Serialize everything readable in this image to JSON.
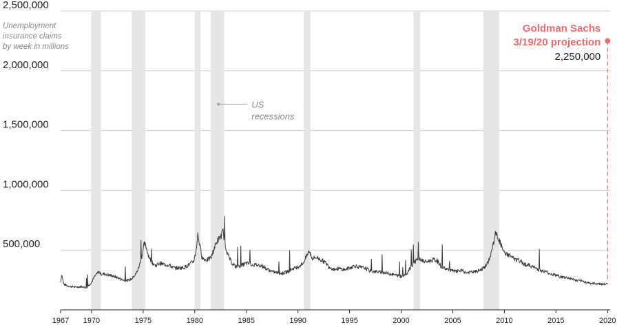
{
  "chart_data": {
    "type": "line",
    "title": "",
    "ylabel_note": [
      "Unemployment",
      "insurance claims",
      "by week in millions"
    ],
    "xlabel": "",
    "xlim": [
      1967,
      2020.25
    ],
    "ylim": [
      0,
      2500000
    ],
    "grid": true,
    "y_ticks": [
      {
        "value": 500000,
        "label": "500,000"
      },
      {
        "value": 1000000,
        "label": "1,000,000"
      },
      {
        "value": 1500000,
        "label": "1,500,000"
      },
      {
        "value": 2000000,
        "label": "2,000,000"
      },
      {
        "value": 2500000,
        "label": "2,500,000"
      }
    ],
    "x_ticks": [
      {
        "value": 1967,
        "label": "1967"
      },
      {
        "value": 1970,
        "label": "1970"
      },
      {
        "value": 1975,
        "label": "1975"
      },
      {
        "value": 1980,
        "label": "1980"
      },
      {
        "value": 1985,
        "label": "1985"
      },
      {
        "value": 1990,
        "label": "1990"
      },
      {
        "value": 1995,
        "label": "1995"
      },
      {
        "value": 2000,
        "label": "2000"
      },
      {
        "value": 2005,
        "label": "2005"
      },
      {
        "value": 2010,
        "label": "2010"
      },
      {
        "value": 2015,
        "label": "2015"
      },
      {
        "value": 2020,
        "label": "2020"
      }
    ],
    "recessions_label": [
      "US",
      "recessions"
    ],
    "recessions": [
      [
        1969.95,
        1970.9
      ],
      [
        1973.9,
        1975.2
      ],
      [
        1980.0,
        1980.55
      ],
      [
        1981.55,
        1982.85
      ],
      [
        1990.55,
        1991.2
      ],
      [
        2001.2,
        2001.85
      ],
      [
        2007.95,
        2009.5
      ]
    ],
    "series": [
      {
        "color": "#3a3a3a",
        "points": [
          [
            1967.0,
            230000
          ],
          [
            1967.1,
            300000
          ],
          [
            1967.3,
            215000
          ],
          [
            1967.7,
            200000
          ],
          [
            1968.0,
            195000
          ],
          [
            1968.5,
            190000
          ],
          [
            1969.0,
            195000
          ],
          [
            1969.5,
            185000
          ],
          [
            1970.0,
            230000
          ],
          [
            1970.3,
            280000
          ],
          [
            1970.5,
            300000
          ],
          [
            1970.7,
            320000
          ],
          [
            1970.9,
            300000
          ],
          [
            1971.3,
            300000
          ],
          [
            1971.7,
            290000
          ],
          [
            1972.0,
            285000
          ],
          [
            1972.5,
            270000
          ],
          [
            1973.0,
            250000
          ],
          [
            1973.5,
            245000
          ],
          [
            1973.9,
            260000
          ],
          [
            1974.3,
            300000
          ],
          [
            1974.6,
            360000
          ],
          [
            1974.9,
            460000
          ],
          [
            1975.1,
            550000
          ],
          [
            1975.25,
            540000
          ],
          [
            1975.5,
            460000
          ],
          [
            1975.8,
            400000
          ],
          [
            1976.2,
            370000
          ],
          [
            1976.6,
            390000
          ],
          [
            1977.0,
            380000
          ],
          [
            1977.5,
            375000
          ],
          [
            1978.0,
            350000
          ],
          [
            1978.5,
            350000
          ],
          [
            1979.0,
            355000
          ],
          [
            1979.5,
            380000
          ],
          [
            1979.9,
            410000
          ],
          [
            1980.1,
            480000
          ],
          [
            1980.3,
            630000
          ],
          [
            1980.45,
            560000
          ],
          [
            1980.7,
            440000
          ],
          [
            1981.0,
            420000
          ],
          [
            1981.3,
            420000
          ],
          [
            1981.6,
            440000
          ],
          [
            1981.9,
            520000
          ],
          [
            1982.2,
            580000
          ],
          [
            1982.5,
            610000
          ],
          [
            1982.75,
            660000
          ],
          [
            1982.9,
            560000
          ],
          [
            1983.2,
            460000
          ],
          [
            1983.6,
            390000
          ],
          [
            1984.0,
            360000
          ],
          [
            1984.5,
            370000
          ],
          [
            1985.0,
            390000
          ],
          [
            1985.5,
            380000
          ],
          [
            1986.0,
            375000
          ],
          [
            1986.5,
            370000
          ],
          [
            1987.0,
            340000
          ],
          [
            1987.5,
            320000
          ],
          [
            1988.0,
            310000
          ],
          [
            1988.5,
            305000
          ],
          [
            1989.0,
            320000
          ],
          [
            1989.5,
            345000
          ],
          [
            1990.0,
            360000
          ],
          [
            1990.5,
            390000
          ],
          [
            1990.9,
            460000
          ],
          [
            1991.1,
            490000
          ],
          [
            1991.4,
            430000
          ],
          [
            1991.8,
            440000
          ],
          [
            1992.2,
            420000
          ],
          [
            1992.6,
            400000
          ],
          [
            1993.0,
            360000
          ],
          [
            1993.5,
            340000
          ],
          [
            1994.0,
            345000
          ],
          [
            1994.5,
            335000
          ],
          [
            1995.0,
            350000
          ],
          [
            1995.5,
            370000
          ],
          [
            1996.0,
            355000
          ],
          [
            1996.5,
            350000
          ],
          [
            1997.0,
            325000
          ],
          [
            1997.5,
            320000
          ],
          [
            1998.0,
            315000
          ],
          [
            1998.5,
            310000
          ],
          [
            1999.0,
            300000
          ],
          [
            1999.5,
            290000
          ],
          [
            2000.0,
            280000
          ],
          [
            2000.5,
            300000
          ],
          [
            2000.9,
            350000
          ],
          [
            2001.3,
            400000
          ],
          [
            2001.7,
            430000
          ],
          [
            2001.9,
            420000
          ],
          [
            2002.3,
            400000
          ],
          [
            2002.8,
            410000
          ],
          [
            2003.2,
            420000
          ],
          [
            2003.5,
            410000
          ],
          [
            2003.9,
            360000
          ],
          [
            2004.3,
            345000
          ],
          [
            2004.8,
            330000
          ],
          [
            2005.3,
            320000
          ],
          [
            2005.8,
            330000
          ],
          [
            2006.3,
            310000
          ],
          [
            2006.8,
            315000
          ],
          [
            2007.3,
            320000
          ],
          [
            2007.8,
            340000
          ],
          [
            2008.1,
            360000
          ],
          [
            2008.4,
            390000
          ],
          [
            2008.7,
            470000
          ],
          [
            2008.9,
            540000
          ],
          [
            2009.15,
            640000
          ],
          [
            2009.3,
            620000
          ],
          [
            2009.6,
            560000
          ],
          [
            2010.0,
            470000
          ],
          [
            2010.5,
            460000
          ],
          [
            2011.0,
            420000
          ],
          [
            2011.5,
            410000
          ],
          [
            2012.0,
            380000
          ],
          [
            2012.5,
            370000
          ],
          [
            2013.0,
            350000
          ],
          [
            2013.5,
            330000
          ],
          [
            2014.0,
            320000
          ],
          [
            2014.5,
            300000
          ],
          [
            2015.0,
            290000
          ],
          [
            2015.5,
            275000
          ],
          [
            2016.0,
            270000
          ],
          [
            2016.5,
            260000
          ],
          [
            2017.0,
            245000
          ],
          [
            2017.5,
            240000
          ],
          [
            2018.0,
            230000
          ],
          [
            2018.5,
            220000
          ],
          [
            2019.0,
            220000
          ],
          [
            2019.5,
            215000
          ],
          [
            2020.0,
            215000
          ]
        ]
      }
    ],
    "projection": {
      "label_lines": [
        "Goldman Sachs",
        "3/19/20 projection"
      ],
      "value_label": "2,250,000",
      "x": 2020.0,
      "y": 2250000,
      "color": "#e76f70"
    }
  }
}
